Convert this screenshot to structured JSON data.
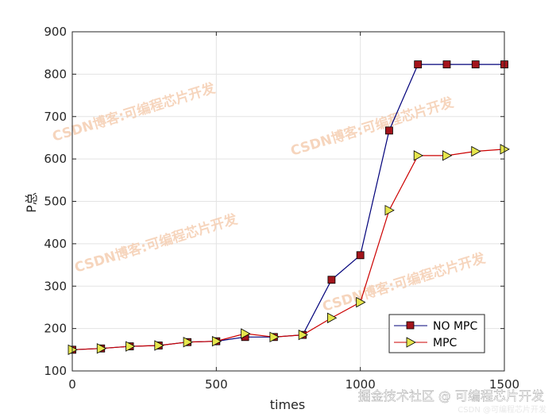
{
  "chart_data": {
    "type": "line",
    "title": "",
    "xlabel": "times",
    "ylabel": "P总",
    "xlim": [
      0,
      1500
    ],
    "ylim": [
      100,
      900
    ],
    "xticks": [
      0,
      500,
      1000,
      1500
    ],
    "yticks": [
      100,
      200,
      300,
      400,
      500,
      600,
      700,
      800,
      900
    ],
    "grid": true,
    "legend_position": "bottom-right",
    "x": [
      0,
      100,
      200,
      300,
      400,
      500,
      600,
      700,
      800,
      900,
      1000,
      1100,
      1200,
      1300,
      1400,
      1500
    ],
    "series": [
      {
        "name": "NO MPC",
        "line_color": "#00007a",
        "marker": "square",
        "marker_fill": "#a3141b",
        "values": [
          150,
          153,
          158,
          160,
          168,
          170,
          180,
          180,
          185,
          315,
          373,
          667,
          823,
          823,
          823,
          823
        ]
      },
      {
        "name": "MPC",
        "line_color": "#cc0000",
        "marker": "triangle-right",
        "marker_fill": "#e6e64d",
        "values": [
          150,
          153,
          158,
          160,
          168,
          170,
          188,
          180,
          185,
          225,
          262,
          479,
          608,
          608,
          618,
          623
        ]
      }
    ]
  },
  "watermarks": {
    "text": "CSDN博客:可编程芯片开发",
    "footer": "掘金技术社区 @ 可编程芯片开发",
    "footer_small": "CSDN @可编程芯片开发"
  }
}
